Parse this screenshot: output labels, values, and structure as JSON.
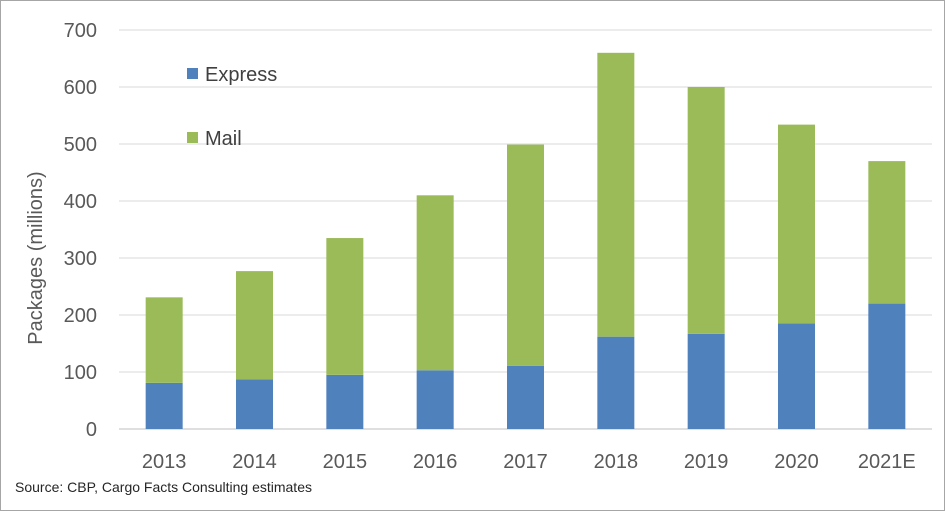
{
  "chart_data": {
    "type": "bar",
    "stacked": true,
    "categories": [
      "2013",
      "2014",
      "2015",
      "2016",
      "2017",
      "2018",
      "2019",
      "2020",
      "2021E"
    ],
    "series": [
      {
        "name": "Express",
        "color": "#4f81bd",
        "values": [
          81,
          87,
          95,
          103,
          111,
          162,
          167,
          185,
          220
        ]
      },
      {
        "name": "Mail",
        "color": "#9bbb59",
        "values": [
          150,
          190,
          240,
          307,
          388,
          498,
          433,
          349,
          250
        ]
      }
    ],
    "title": "",
    "xlabel": "",
    "ylabel": "Packages (millions)",
    "ylim": [
      0,
      700
    ],
    "yticks": [
      0,
      100,
      200,
      300,
      400,
      500,
      600,
      700
    ],
    "grid": "horizontal",
    "legend_placement": "top-left"
  },
  "source_note": "Source: CBP, Cargo Facts Consulting estimates"
}
